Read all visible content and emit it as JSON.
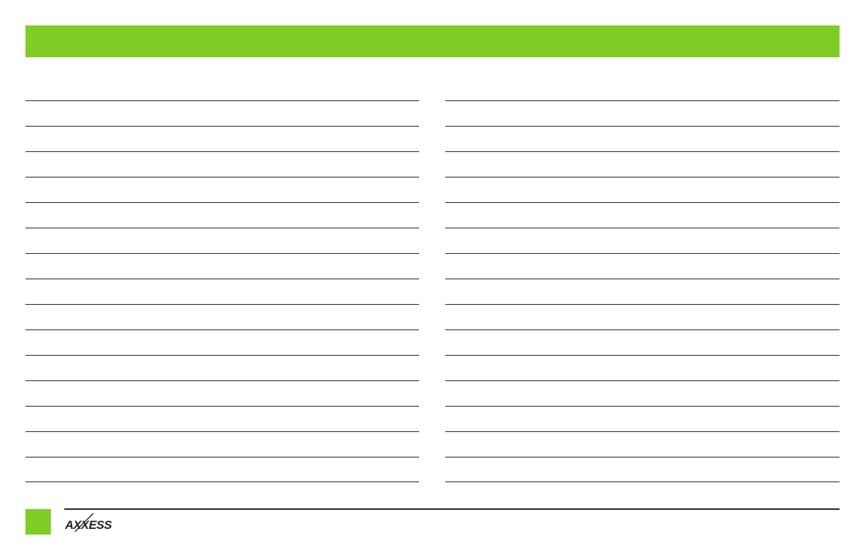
{
  "colors": {
    "accent": "#80cd28",
    "rule": "#231f20"
  },
  "notes": {
    "lines_per_column": 15
  },
  "footer": {
    "logo_text": "AXXESS"
  }
}
